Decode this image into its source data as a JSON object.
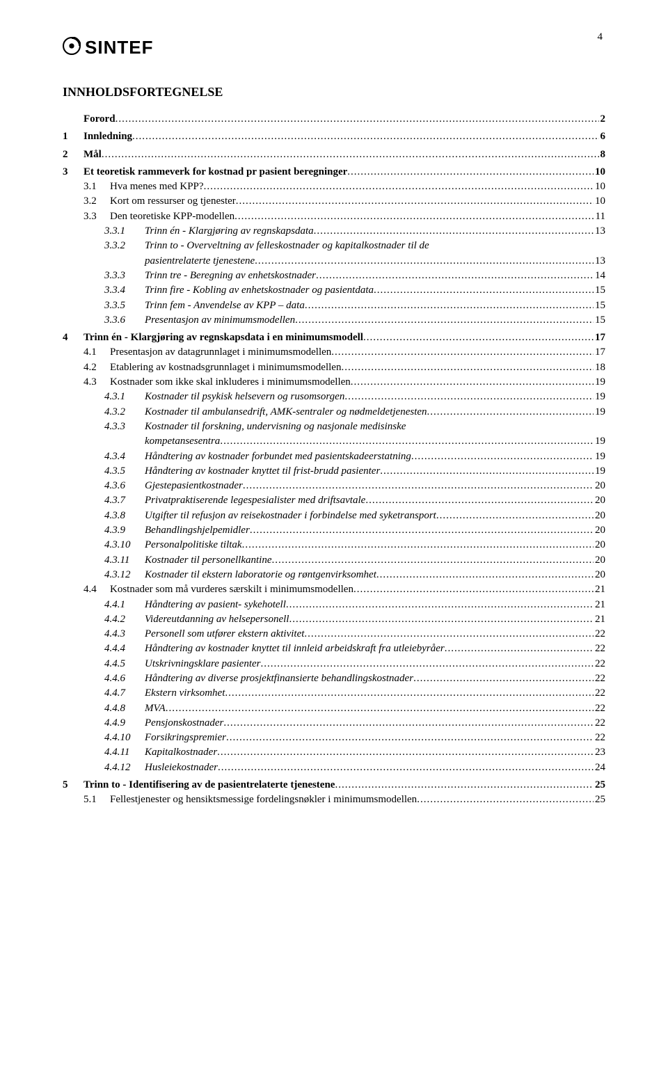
{
  "page_number": "4",
  "logo_text": "SINTEF",
  "heading": "INNHOLDSFORTEGNELSE",
  "toc": [
    {
      "num": "",
      "title": "Forord",
      "page": "2",
      "level": 0,
      "bold": true,
      "italic": false,
      "gap": false
    },
    {
      "num": "1",
      "title": "Innledning",
      "page": "6",
      "level": 0,
      "bold": true,
      "italic": false,
      "gap": true
    },
    {
      "num": "2",
      "title": "Mål",
      "page": "8",
      "level": 0,
      "bold": true,
      "italic": false,
      "gap": true
    },
    {
      "num": "3",
      "title": "Et teoretisk rammeverk for kostnad pr pasient beregninger",
      "page": "10",
      "level": 0,
      "bold": true,
      "italic": false,
      "gap": true
    },
    {
      "num": "3.1",
      "title": "Hva menes med KPP?",
      "page": "10",
      "level": 1,
      "bold": false,
      "italic": false,
      "gap": false
    },
    {
      "num": "3.2",
      "title": "Kort om ressurser og tjenester",
      "page": "10",
      "level": 1,
      "bold": false,
      "italic": false,
      "gap": false
    },
    {
      "num": "3.3",
      "title": "Den teoretiske KPP-modellen",
      "page": "11",
      "level": 1,
      "bold": false,
      "italic": false,
      "gap": false
    },
    {
      "num": "3.3.1",
      "title": "Trinn én - Klargjøring av regnskapsdata",
      "page": "13",
      "level": 2,
      "bold": false,
      "italic": true,
      "gap": false
    },
    {
      "num": "3.3.2",
      "title": "Trinn to - Overveltning av felleskostnader og kapitalkostnader til de",
      "wrap": "pasientrelaterte tjenestene",
      "page": "13",
      "level": 2,
      "bold": false,
      "italic": true,
      "gap": false
    },
    {
      "num": "3.3.3",
      "title": "Trinn tre - Beregning av enhetskostnader",
      "page": "14",
      "level": 2,
      "bold": false,
      "italic": true,
      "gap": false
    },
    {
      "num": "3.3.4",
      "title": "Trinn fire - Kobling av enhetskostnader og pasientdata",
      "page": "15",
      "level": 2,
      "bold": false,
      "italic": true,
      "gap": false
    },
    {
      "num": "3.3.5",
      "title": "Trinn fem - Anvendelse av KPP – data",
      "page": "15",
      "level": 2,
      "bold": false,
      "italic": true,
      "gap": false
    },
    {
      "num": "3.3.6",
      "title": "Presentasjon av minimumsmodellen",
      "page": "15",
      "level": 2,
      "bold": false,
      "italic": true,
      "gap": false
    },
    {
      "num": "4",
      "title": "Trinn én - Klargjøring av regnskapsdata i en minimumsmodell",
      "page": "17",
      "level": 0,
      "bold": true,
      "italic": false,
      "gap": true
    },
    {
      "num": "4.1",
      "title": "Presentasjon av datagrunnlaget i minimumsmodellen",
      "page": "17",
      "level": 1,
      "bold": false,
      "italic": false,
      "gap": false
    },
    {
      "num": "4.2",
      "title": "Etablering av kostnadsgrunnlaget i minimumsmodellen",
      "page": "18",
      "level": 1,
      "bold": false,
      "italic": false,
      "gap": false
    },
    {
      "num": "4.3",
      "title": "Kostnader som ikke skal inkluderes i minimumsmodellen",
      "page": "19",
      "level": 1,
      "bold": false,
      "italic": false,
      "gap": false
    },
    {
      "num": "4.3.1",
      "title": "Kostnader til psykisk helsevern og rusomsorgen",
      "page": "19",
      "level": 2,
      "bold": false,
      "italic": true,
      "gap": false
    },
    {
      "num": "4.3.2",
      "title": "Kostnader til ambulansedrift, AMK-sentraler og nødmeldetjenesten",
      "page": "19",
      "level": 2,
      "bold": false,
      "italic": true,
      "gap": false
    },
    {
      "num": "4.3.3",
      "title": "Kostnader til forskning, undervisning og nasjonale medisinske",
      "wrap": "kompetansesentra",
      "page": "19",
      "level": 2,
      "bold": false,
      "italic": true,
      "gap": false
    },
    {
      "num": "4.3.4",
      "title": "Håndtering av kostnader forbundet med pasientskadeerstatning",
      "page": "19",
      "level": 2,
      "bold": false,
      "italic": true,
      "gap": false
    },
    {
      "num": "4.3.5",
      "title": "Håndtering av kostnader knyttet til frist-brudd pasienter",
      "page": "19",
      "level": 2,
      "bold": false,
      "italic": true,
      "gap": false
    },
    {
      "num": "4.3.6",
      "title": "Gjestepasientkostnader",
      "page": "20",
      "level": 2,
      "bold": false,
      "italic": true,
      "gap": false
    },
    {
      "num": "4.3.7",
      "title": "Privatpraktiserende legespesialister med driftsavtale",
      "page": "20",
      "level": 2,
      "bold": false,
      "italic": true,
      "gap": false
    },
    {
      "num": "4.3.8",
      "title": "Utgifter til refusjon av reisekostnader i forbindelse med syketransport",
      "page": "20",
      "level": 2,
      "bold": false,
      "italic": true,
      "gap": false
    },
    {
      "num": "4.3.9",
      "title": "Behandlingshjelpemidler",
      "page": "20",
      "level": 2,
      "bold": false,
      "italic": true,
      "gap": false
    },
    {
      "num": "4.3.10",
      "title": "Personalpolitiske tiltak",
      "page": "20",
      "level": 2,
      "bold": false,
      "italic": true,
      "gap": false
    },
    {
      "num": "4.3.11",
      "title": "Kostnader til personellkantine",
      "page": "20",
      "level": 2,
      "bold": false,
      "italic": true,
      "gap": false
    },
    {
      "num": "4.3.12",
      "title": "Kostnader til ekstern laboratorie og røntgenvirksomhet",
      "page": "20",
      "level": 2,
      "bold": false,
      "italic": true,
      "gap": false
    },
    {
      "num": "4.4",
      "title": "Kostnader som må vurderes særskilt i minimumsmodellen",
      "page": "21",
      "level": 1,
      "bold": false,
      "italic": false,
      "gap": false
    },
    {
      "num": "4.4.1",
      "title": "Håndtering av pasient- sykehotell",
      "page": "21",
      "level": 2,
      "bold": false,
      "italic": true,
      "gap": false
    },
    {
      "num": "4.4.2",
      "title": "Videreutdanning av helsepersonell",
      "page": "21",
      "level": 2,
      "bold": false,
      "italic": true,
      "gap": false
    },
    {
      "num": "4.4.3",
      "title": "Personell som utfører ekstern aktivitet",
      "page": "22",
      "level": 2,
      "bold": false,
      "italic": true,
      "gap": false
    },
    {
      "num": "4.4.4",
      "title": "Håndtering av kostnader knyttet til innleid arbeidskraft fra utleiebyråer",
      "page": "22",
      "level": 2,
      "bold": false,
      "italic": true,
      "gap": false
    },
    {
      "num": "4.4.5",
      "title": "Utskrivningsklare pasienter",
      "page": "22",
      "level": 2,
      "bold": false,
      "italic": true,
      "gap": false
    },
    {
      "num": "4.4.6",
      "title": "Håndtering av diverse prosjektfinansierte behandlingskostnader",
      "page": "22",
      "level": 2,
      "bold": false,
      "italic": true,
      "gap": false
    },
    {
      "num": "4.4.7",
      "title": "Ekstern virksomhet",
      "page": "22",
      "level": 2,
      "bold": false,
      "italic": true,
      "gap": false
    },
    {
      "num": "4.4.8",
      "title": "MVA",
      "page": "22",
      "level": 2,
      "bold": false,
      "italic": true,
      "gap": false
    },
    {
      "num": "4.4.9",
      "title": "Pensjonskostnader",
      "page": "22",
      "level": 2,
      "bold": false,
      "italic": true,
      "gap": false
    },
    {
      "num": "4.4.10",
      "title": "Forsikringspremier",
      "page": "22",
      "level": 2,
      "bold": false,
      "italic": true,
      "gap": false
    },
    {
      "num": "4.4.11",
      "title": "Kapitalkostnader",
      "page": "23",
      "level": 2,
      "bold": false,
      "italic": true,
      "gap": false
    },
    {
      "num": "4.4.12",
      "title": "Husleiekostnader",
      "page": "24",
      "level": 2,
      "bold": false,
      "italic": true,
      "gap": false
    },
    {
      "num": "5",
      "title": "Trinn to - Identifisering av de pasientrelaterte tjenestene",
      "page": "25",
      "level": 0,
      "bold": true,
      "italic": false,
      "gap": true
    },
    {
      "num": "5.1",
      "title": "Fellestjenester og hensiktsmessige fordelingsnøkler i minimumsmodellen",
      "page": "25",
      "level": 1,
      "bold": false,
      "italic": false,
      "gap": false
    }
  ]
}
